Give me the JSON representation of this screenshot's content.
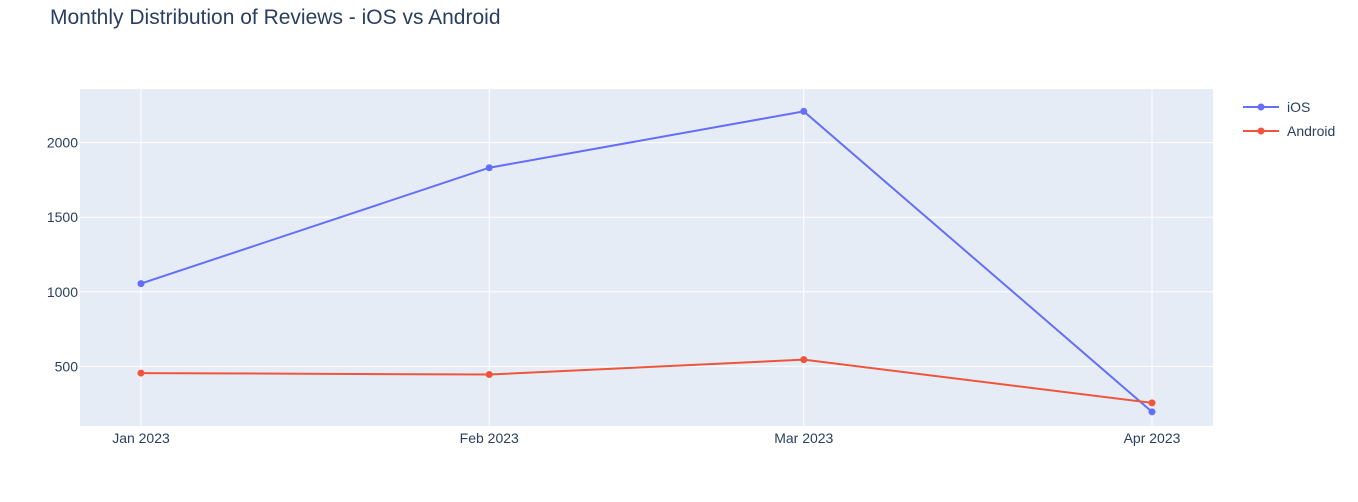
{
  "chart_data": {
    "type": "line",
    "title": "Monthly Distribution of Reviews - iOS vs Android",
    "xlabel": "",
    "ylabel": "",
    "categories": [
      "Jan 2023",
      "Feb 2023",
      "Mar 2023",
      "Apr 2023"
    ],
    "x_dates": [
      "2023-01-01",
      "2023-02-01",
      "2023-03-01",
      "2023-04-01"
    ],
    "yticks": [
      500,
      1000,
      1500,
      2000
    ],
    "ylim": [
      100,
      2360
    ],
    "grid": true,
    "legend_position": "top-right",
    "series": [
      {
        "name": "iOS",
        "color": "#636efa",
        "values": [
          1055,
          1832,
          2210,
          195
        ]
      },
      {
        "name": "Android",
        "color": "#ef553b",
        "values": [
          455,
          445,
          545,
          255
        ]
      }
    ]
  },
  "colors": {
    "plot_bg": "#e5ecf6",
    "grid": "#ffffff",
    "text": "#2a3f5f"
  }
}
